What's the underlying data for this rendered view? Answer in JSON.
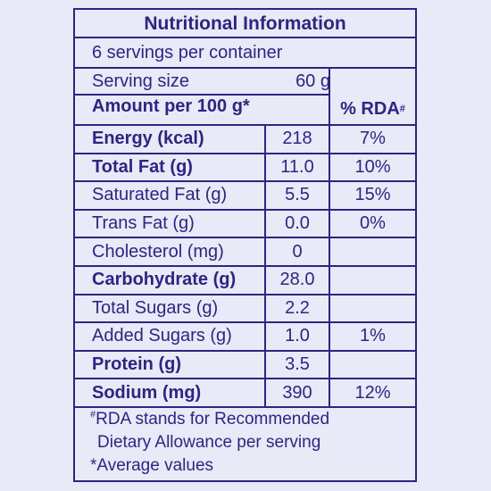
{
  "colors": {
    "ink": "#2e2580",
    "background": "#e9e9f7"
  },
  "label": {
    "title": "Nutritional Information",
    "servings_per_container": "6 servings per container",
    "serving_size": {
      "label": "Serving size",
      "value": "60 g"
    },
    "amount_header": "Amount per 100 g*",
    "rda_header": "% RDA",
    "rda_header_mark": "#",
    "rows": [
      {
        "name": "Energy (kcal)",
        "value": "218",
        "rda": "7%",
        "bold": true
      },
      {
        "name": "Total Fat (g)",
        "value": "11.0",
        "rda": "10%",
        "bold": true
      },
      {
        "name": "Saturated Fat (g)",
        "value": "5.5",
        "rda": "15%",
        "bold": false
      },
      {
        "name": "Trans Fat (g)",
        "value": "0.0",
        "rda": "0%",
        "bold": false
      },
      {
        "name": "Cholesterol (mg)",
        "value": "0",
        "rda": "",
        "bold": false
      },
      {
        "name": "Carbohydrate (g)",
        "value": "28.0",
        "rda": "",
        "bold": true
      },
      {
        "name": "Total Sugars (g)",
        "value": "2.2",
        "rda": "",
        "bold": false
      },
      {
        "name": "Added Sugars (g)",
        "value": "1.0",
        "rda": "1%",
        "bold": false
      },
      {
        "name": "Protein (g)",
        "value": "3.5",
        "rda": "",
        "bold": true
      },
      {
        "name": "Sodium (mg)",
        "value": "390",
        "rda": "12%",
        "bold": true
      }
    ],
    "footnotes": {
      "mark": "#",
      "line1": "RDA stands for Recommended",
      "line2": "Dietary Allowance per serving",
      "line3": "*Average values"
    }
  }
}
